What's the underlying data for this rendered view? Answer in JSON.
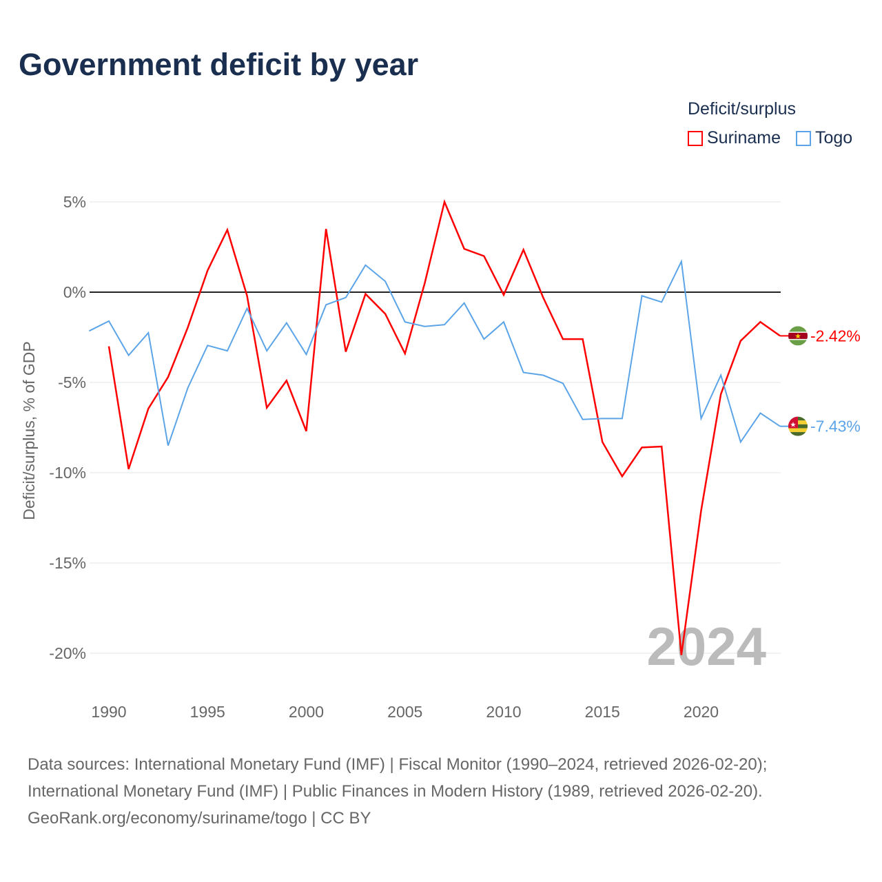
{
  "title": "Government deficit by year",
  "legend": {
    "title": "Deficit/surplus",
    "items": [
      "Suriname",
      "Togo"
    ]
  },
  "source": [
    "Data sources: International Monetary Fund (IMF) | Fiscal Monitor (1990–2024, retrieved 2026-02-20);",
    "International Monetary Fund (IMF) | Public Finances in Modern History (1989, retrieved 2026-02-20).",
    "GeoRank.org/economy/suriname/togo | CC BY"
  ],
  "chart_data": {
    "type": "line",
    "title": "Government deficit by year",
    "ylabel": "Deficit/surplus, % of GDP",
    "xlim": [
      1989,
      2024
    ],
    "ylim": [
      -22,
      6
    ],
    "yticks": [
      5,
      0,
      -5,
      -10,
      -15,
      -20
    ],
    "ytick_labels": [
      "5%",
      "0%",
      "-5%",
      "-10%",
      "-15%",
      "-20%"
    ],
    "xticks": [
      1990,
      1995,
      2000,
      2005,
      2010,
      2015,
      2020
    ],
    "xtick_labels": [
      "1990",
      "1995",
      "2000",
      "2005",
      "2010",
      "2015",
      "2020"
    ],
    "year_label": "2024",
    "series": [
      {
        "name": "Suriname",
        "color": "#ff0000",
        "start": 1990,
        "end_label": "-2.42%",
        "values": [
          -3.0,
          -9.8,
          -6.45,
          -4.7,
          -1.95,
          1.2,
          3.45,
          -0.2,
          -6.4,
          -4.9,
          -7.7,
          3.5,
          -3.3,
          -0.1,
          -1.2,
          -3.4,
          0.5,
          5.0,
          2.4,
          2.0,
          -0.15,
          2.35,
          -0.3,
          -2.6,
          -2.6,
          -8.3,
          -10.2,
          -8.6,
          -8.55,
          -20.1,
          -12.1,
          -5.65,
          -2.7,
          -1.65,
          -2.42
        ]
      },
      {
        "name": "Togo",
        "color": "#5ba4e8",
        "start": 1989,
        "end_label": "-7.43%",
        "values": [
          -2.15,
          -1.6,
          -3.5,
          -2.25,
          -8.5,
          -5.3,
          -2.95,
          -3.25,
          -0.9,
          -3.25,
          -1.7,
          -3.45,
          -0.7,
          -0.3,
          1.5,
          0.6,
          -1.65,
          -1.9,
          -1.8,
          -0.6,
          -2.6,
          -1.65,
          -4.45,
          -4.6,
          -5.05,
          -7.05,
          -7.0,
          -7.0,
          -0.2,
          -0.55,
          1.7,
          -7.0,
          -4.6,
          -8.3,
          -6.7,
          -7.43
        ]
      }
    ]
  }
}
